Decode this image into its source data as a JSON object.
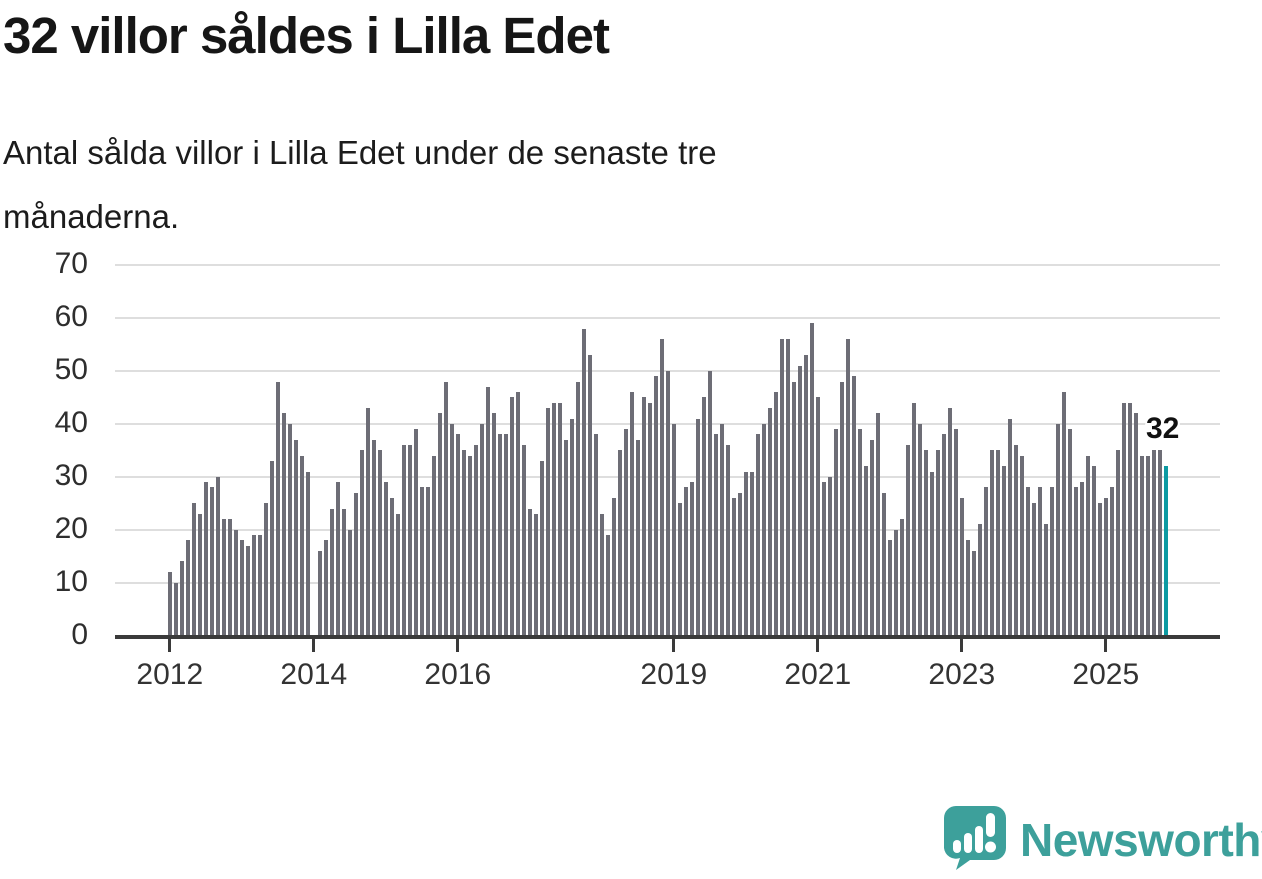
{
  "header": {
    "title": "32 villor såldes i Lilla Edet",
    "subtitle_line1": "Antal sålda villor i Lilla Edet under de senaste tre",
    "subtitle_line2": "månaderna."
  },
  "chart_data": {
    "type": "bar",
    "title": "32 villor såldes i Lilla Edet",
    "xlabel": "",
    "ylabel": "",
    "x_start": "2012-01",
    "x_end": "2025-11",
    "frequency": "monthly",
    "ylim": [
      0,
      70
    ],
    "y_ticks": [
      0,
      10,
      20,
      30,
      40,
      50,
      60,
      70
    ],
    "x_ticks": [
      2012,
      2014,
      2016,
      2019,
      2021,
      2023,
      2025
    ],
    "grid": "horizontal",
    "legend": "none",
    "annotation_last_value": "32",
    "values": [
      12,
      10,
      14,
      18,
      25,
      23,
      29,
      28,
      30,
      22,
      22,
      20,
      18,
      17,
      19,
      19,
      25,
      33,
      48,
      42,
      40,
      37,
      34,
      31,
      0,
      16,
      18,
      24,
      29,
      24,
      20,
      27,
      35,
      43,
      37,
      35,
      29,
      26,
      23,
      36,
      36,
      39,
      28,
      28,
      34,
      42,
      48,
      40,
      38,
      35,
      34,
      36,
      40,
      47,
      42,
      38,
      38,
      45,
      46,
      36,
      24,
      23,
      33,
      43,
      44,
      44,
      37,
      41,
      48,
      58,
      53,
      38,
      23,
      19,
      26,
      35,
      39,
      46,
      37,
      45,
      44,
      49,
      56,
      50,
      40,
      25,
      28,
      29,
      41,
      45,
      50,
      38,
      40,
      36,
      26,
      27,
      31,
      31,
      38,
      40,
      43,
      46,
      56,
      56,
      48,
      51,
      53,
      59,
      45,
      29,
      30,
      39,
      48,
      56,
      49,
      39,
      32,
      37,
      42,
      27,
      18,
      20,
      22,
      36,
      44,
      40,
      35,
      31,
      35,
      38,
      43,
      39,
      26,
      18,
      16,
      21,
      28,
      35,
      35,
      32,
      41,
      36,
      34,
      28,
      25,
      28,
      21,
      28,
      40,
      46,
      39,
      28,
      29,
      34,
      32,
      25,
      26,
      28,
      35,
      44,
      44,
      42,
      34,
      34,
      35,
      35,
      32
    ]
  },
  "colors": {
    "bar": "#6d6d76",
    "highlight": "#0d9aa2",
    "gridline": "#dedede",
    "axis": "#3a3a3a",
    "text": "#161616",
    "logo_teal": "#3da09b"
  },
  "footer": {
    "logo_text": "Newsworthy",
    "logo_icon": "bar-chart-speech-bubble-icon"
  }
}
